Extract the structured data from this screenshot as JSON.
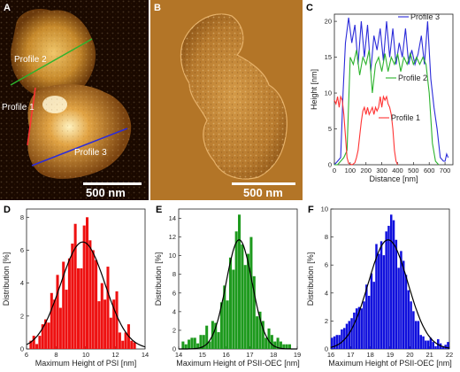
{
  "panels": {
    "a": {
      "letter": "A",
      "labels": {
        "profile1": "Profile 1",
        "profile2": "Profile 2",
        "profile3": "Profile 3"
      },
      "scalebar": "500 nm",
      "colors": {
        "profile1": "#ff3333",
        "profile2": "#2db32d",
        "profile3": "#2b2bd9"
      }
    },
    "b": {
      "letter": "B",
      "scalebar": "500 nm"
    },
    "c": {
      "letter": "C"
    },
    "d": {
      "letter": "D"
    },
    "e": {
      "letter": "E"
    },
    "f": {
      "letter": "F"
    }
  },
  "chart_data": [
    {
      "panel": "C",
      "type": "line",
      "xlabel": "Distance [nm]",
      "ylabel": "Height [nm]",
      "xlim": [
        0,
        750
      ],
      "ylim": [
        0,
        21
      ],
      "xticks": [
        0,
        100,
        200,
        300,
        400,
        500,
        600,
        700
      ],
      "yticks": [
        0,
        5,
        10,
        15,
        20
      ],
      "grid": false,
      "series": [
        {
          "name": "Profile 3",
          "color": "#2b2bd9",
          "x": [
            0,
            20,
            40,
            55,
            70,
            90,
            110,
            130,
            150,
            170,
            190,
            210,
            230,
            250,
            270,
            290,
            310,
            330,
            350,
            370,
            390,
            410,
            430,
            450,
            470,
            490,
            510,
            530,
            550,
            570,
            590,
            610,
            630,
            650,
            670,
            690,
            700,
            710,
            720
          ],
          "y": [
            0,
            0.5,
            1,
            10,
            17,
            20.5,
            17,
            19.5,
            14,
            20,
            15,
            19.5,
            13,
            18,
            16,
            19,
            14.5,
            20,
            15,
            19,
            14,
            17,
            15,
            19,
            14,
            16,
            14,
            15.5,
            18,
            14,
            20,
            12,
            8,
            5,
            1,
            0.5,
            0.5,
            1.5,
            1
          ]
        },
        {
          "name": "Profile 2",
          "color": "#2db32d",
          "x": [
            0,
            20,
            40,
            60,
            80,
            100,
            120,
            140,
            160,
            180,
            200,
            220,
            240,
            260,
            280,
            300,
            320,
            340,
            360,
            380,
            400,
            420,
            440,
            460,
            480,
            500,
            520,
            540,
            560,
            580,
            600,
            620,
            640,
            660
          ],
          "y": [
            0,
            0,
            0.5,
            1,
            2,
            15,
            14,
            16,
            12.5,
            15,
            14,
            16,
            10,
            14,
            15,
            13,
            15.5,
            13,
            15,
            14,
            15.5,
            13,
            15,
            14,
            15.5,
            14,
            15,
            14,
            15,
            14,
            10,
            3,
            0.5,
            0
          ]
        },
        {
          "name": "Profile 1",
          "color": "#ff3333",
          "x": [
            0,
            10,
            20,
            30,
            40,
            50,
            60,
            70,
            80,
            90,
            100,
            110,
            120,
            130,
            140,
            150,
            160,
            170,
            180,
            190,
            200,
            210,
            220,
            230,
            240,
            250,
            260,
            270,
            280,
            290,
            300,
            310,
            320,
            330,
            340,
            350,
            360,
            370,
            380,
            390,
            400
          ],
          "y": [
            9,
            8.5,
            9.5,
            8,
            9.5,
            9,
            7,
            4,
            1,
            0.2,
            0.1,
            0,
            0.1,
            0.3,
            1,
            2,
            4,
            6,
            7.5,
            8,
            7,
            8,
            7,
            7.5,
            8,
            7,
            8,
            7.5,
            8,
            9.5,
            8,
            9.5,
            9,
            9.5,
            8.5,
            8,
            7,
            5,
            2,
            0.5,
            0
          ]
        }
      ]
    },
    {
      "panel": "D",
      "type": "bar",
      "xlabel": "Maximum Height of PSI [nm]",
      "ylabel": "Distribution [%]",
      "xlim": [
        6,
        14
      ],
      "ylim": [
        0,
        8.5
      ],
      "xticks": [
        6,
        8,
        10,
        12,
        14
      ],
      "yticks": [
        0,
        2,
        4,
        6,
        8
      ],
      "bar_color": "#ee1111",
      "bin_width": 0.2,
      "bin_starts": [
        6.2,
        6.4,
        6.6,
        6.8,
        7.0,
        7.2,
        7.4,
        7.6,
        7.8,
        8.0,
        8.2,
        8.4,
        8.6,
        8.8,
        9.0,
        9.2,
        9.4,
        9.6,
        9.8,
        10.0,
        10.2,
        10.4,
        10.6,
        10.8,
        11.0,
        11.2,
        11.4,
        11.6,
        11.8,
        12.0,
        12.2,
        12.4,
        12.6,
        12.8,
        13.0,
        13.2
      ],
      "values": [
        0.5,
        0.8,
        0.3,
        0.8,
        1.5,
        1.8,
        1.6,
        3.4,
        3.0,
        4.5,
        2.5,
        5.3,
        3.6,
        5.5,
        6.4,
        7.6,
        4.9,
        4.9,
        7.5,
        8.0,
        6.6,
        6.0,
        5.4,
        2.9,
        4.0,
        3.0,
        5.0,
        1.9,
        3.0,
        3.5,
        1.0,
        0.5,
        1.0,
        1.5,
        0.5,
        0.4
      ],
      "fit": {
        "type": "gaussian",
        "mean": 9.8,
        "sigma": 1.5,
        "amplitude": 6.5
      }
    },
    {
      "panel": "E",
      "type": "bar",
      "xlabel": "Maximum Height of PSII-OEC [nm]",
      "ylabel": "Distribution [%]",
      "xlim": [
        14,
        19
      ],
      "ylim": [
        0,
        15
      ],
      "xticks": [
        14,
        15,
        16,
        17,
        18,
        19
      ],
      "yticks": [
        0,
        2,
        4,
        6,
        8,
        10,
        12,
        14
      ],
      "bar_color": "#1e9a1e",
      "bin_width": 0.125,
      "bin_starts": [
        14.125,
        14.25,
        14.375,
        14.5,
        14.625,
        14.75,
        14.875,
        15.0,
        15.125,
        15.25,
        15.375,
        15.5,
        15.625,
        15.75,
        15.875,
        16.0,
        16.125,
        16.25,
        16.375,
        16.5,
        16.625,
        16.75,
        16.875,
        17.0,
        17.125,
        17.25,
        17.375,
        17.5,
        17.625,
        17.75,
        17.875,
        18.0,
        18.125,
        18.25,
        18.375,
        18.5,
        18.625
      ],
      "values": [
        0.8,
        0.5,
        1.0,
        1.2,
        1.2,
        0.6,
        1.5,
        1.5,
        2.5,
        0.8,
        3.0,
        2.8,
        1.8,
        5.0,
        6.8,
        5.2,
        9.8,
        8.5,
        12.6,
        14.4,
        11.2,
        9.0,
        10.2,
        12.0,
        7.8,
        3.5,
        4.0,
        3.0,
        1.2,
        2.2,
        1.5,
        0.8,
        1.2,
        0.8,
        0.5,
        0.5,
        0.5
      ],
      "fit": {
        "type": "gaussian",
        "mean": 16.55,
        "sigma": 0.55,
        "amplitude": 11.7
      }
    },
    {
      "panel": "F",
      "type": "bar",
      "xlabel": "Maximum Height of PSII-OEC [nm]",
      "ylabel": "Distribution [%]",
      "xlim": [
        16,
        22
      ],
      "ylim": [
        0,
        10
      ],
      "xticks": [
        16,
        17,
        18,
        19,
        20,
        21,
        22
      ],
      "yticks": [
        0,
        2,
        4,
        6,
        8,
        10
      ],
      "bar_color": "#1010dd",
      "bin_width": 0.125,
      "bin_starts": [
        16.0,
        16.125,
        16.25,
        16.375,
        16.5,
        16.625,
        16.75,
        16.875,
        17.0,
        17.125,
        17.25,
        17.375,
        17.5,
        17.625,
        17.75,
        17.875,
        18.0,
        18.125,
        18.25,
        18.375,
        18.5,
        18.625,
        18.75,
        18.875,
        19.0,
        19.125,
        19.25,
        19.375,
        19.5,
        19.625,
        19.75,
        19.875,
        20.0,
        20.125,
        20.25,
        20.375,
        20.5,
        20.625,
        20.75,
        20.875,
        21.0,
        21.125,
        21.25,
        21.375,
        21.5,
        21.625,
        21.75,
        21.875
      ],
      "values": [
        0.8,
        0.9,
        1.0,
        1.0,
        1.4,
        1.5,
        1.8,
        2.0,
        2.2,
        2.6,
        2.9,
        3.0,
        2.9,
        3.4,
        4.6,
        3.8,
        5.4,
        4.8,
        7.5,
        6.8,
        7.7,
        6.7,
        8.4,
        8.8,
        9.6,
        9.2,
        7.8,
        5.8,
        7.0,
        6.3,
        5.3,
        4.2,
        3.4,
        2.7,
        2.0,
        2.0,
        1.0,
        0.9,
        0.6,
        0.6,
        0.8,
        0.5,
        0.2,
        0.7,
        0.4,
        0.2,
        0.3,
        0.5
      ],
      "fit": {
        "type": "gaussian",
        "mean": 18.9,
        "sigma": 1.0,
        "amplitude": 7.8
      }
    }
  ]
}
